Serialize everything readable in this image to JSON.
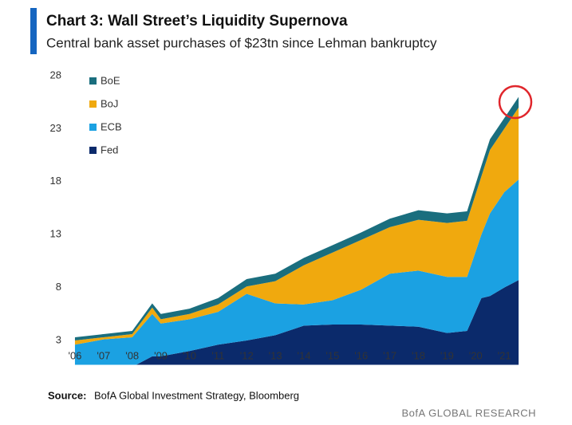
{
  "chart_data": {
    "type": "stacked-area",
    "title": "Chart 3: Wall Street’s Liquidity Supernova",
    "subtitle": "Central bank asset purchases of $23tn since Lehman bankruptcy",
    "x": [
      2006,
      2007,
      2008,
      2008.7,
      2009,
      2010,
      2011,
      2012,
      2013,
      2014,
      2015,
      2016,
      2017,
      2018,
      2019,
      2019.7,
      2020.2,
      2020.5,
      2021,
      2021.5
    ],
    "series": [
      {
        "name": "Fed",
        "color": "#0b2a6b",
        "values": [
          0.5,
          0.5,
          0.5,
          1.5,
          1.5,
          2.0,
          2.6,
          3.0,
          3.5,
          4.4,
          4.5,
          4.5,
          4.4,
          4.3,
          3.7,
          3.9,
          7.0,
          7.2,
          8.0,
          8.7
        ]
      },
      {
        "name": "ECB",
        "color": "#1ba1e2",
        "values": [
          2.1,
          2.6,
          2.8,
          4.0,
          3.1,
          3.0,
          3.1,
          4.4,
          3.0,
          2.0,
          2.3,
          3.3,
          4.9,
          5.3,
          5.3,
          5.1,
          6.0,
          7.8,
          9.0,
          9.5
        ]
      },
      {
        "name": "BoJ",
        "color": "#f0a90e",
        "values": [
          0.4,
          0.2,
          0.3,
          0.6,
          0.4,
          0.5,
          0.7,
          0.7,
          2.1,
          3.7,
          4.5,
          4.7,
          4.4,
          4.8,
          5.1,
          5.3,
          5.5,
          6.0,
          6.0,
          6.8
        ]
      },
      {
        "name": "BoE",
        "color": "#1a6e7e",
        "values": [
          0.3,
          0.3,
          0.3,
          0.4,
          0.5,
          0.5,
          0.6,
          0.7,
          0.7,
          0.7,
          0.7,
          0.7,
          0.8,
          0.9,
          0.9,
          0.9,
          1.0,
          1.0,
          1.0,
          1.0
        ]
      }
    ],
    "xlim": [
      2005.6,
      2022.0
    ],
    "xticks": [
      {
        "value": 2006,
        "label": "'06"
      },
      {
        "value": 2007,
        "label": "'07"
      },
      {
        "value": 2008,
        "label": "'08"
      },
      {
        "value": 2009,
        "label": "'09"
      },
      {
        "value": 2010,
        "label": "'10"
      },
      {
        "value": 2011,
        "label": "'11"
      },
      {
        "value": 2012,
        "label": "'12"
      },
      {
        "value": 2013,
        "label": "'13"
      },
      {
        "value": 2014,
        "label": "'14"
      },
      {
        "value": 2015,
        "label": "'15"
      },
      {
        "value": 2016,
        "label": "'16"
      },
      {
        "value": 2017,
        "label": "'17"
      },
      {
        "value": 2018,
        "label": "'18"
      },
      {
        "value": 2019,
        "label": "'19"
      },
      {
        "value": 2020,
        "label": "'20"
      },
      {
        "value": 2021,
        "label": "'21"
      }
    ],
    "ylim": [
      0.7,
      28
    ],
    "yticks": [
      3,
      8,
      13,
      18,
      23,
      28
    ],
    "grid": false,
    "legend": "top-left",
    "source_label": "Source:",
    "source_text": "BofA Global Investment Strategy, Bloomberg",
    "footer": "BofA GLOBAL RESEARCH"
  }
}
